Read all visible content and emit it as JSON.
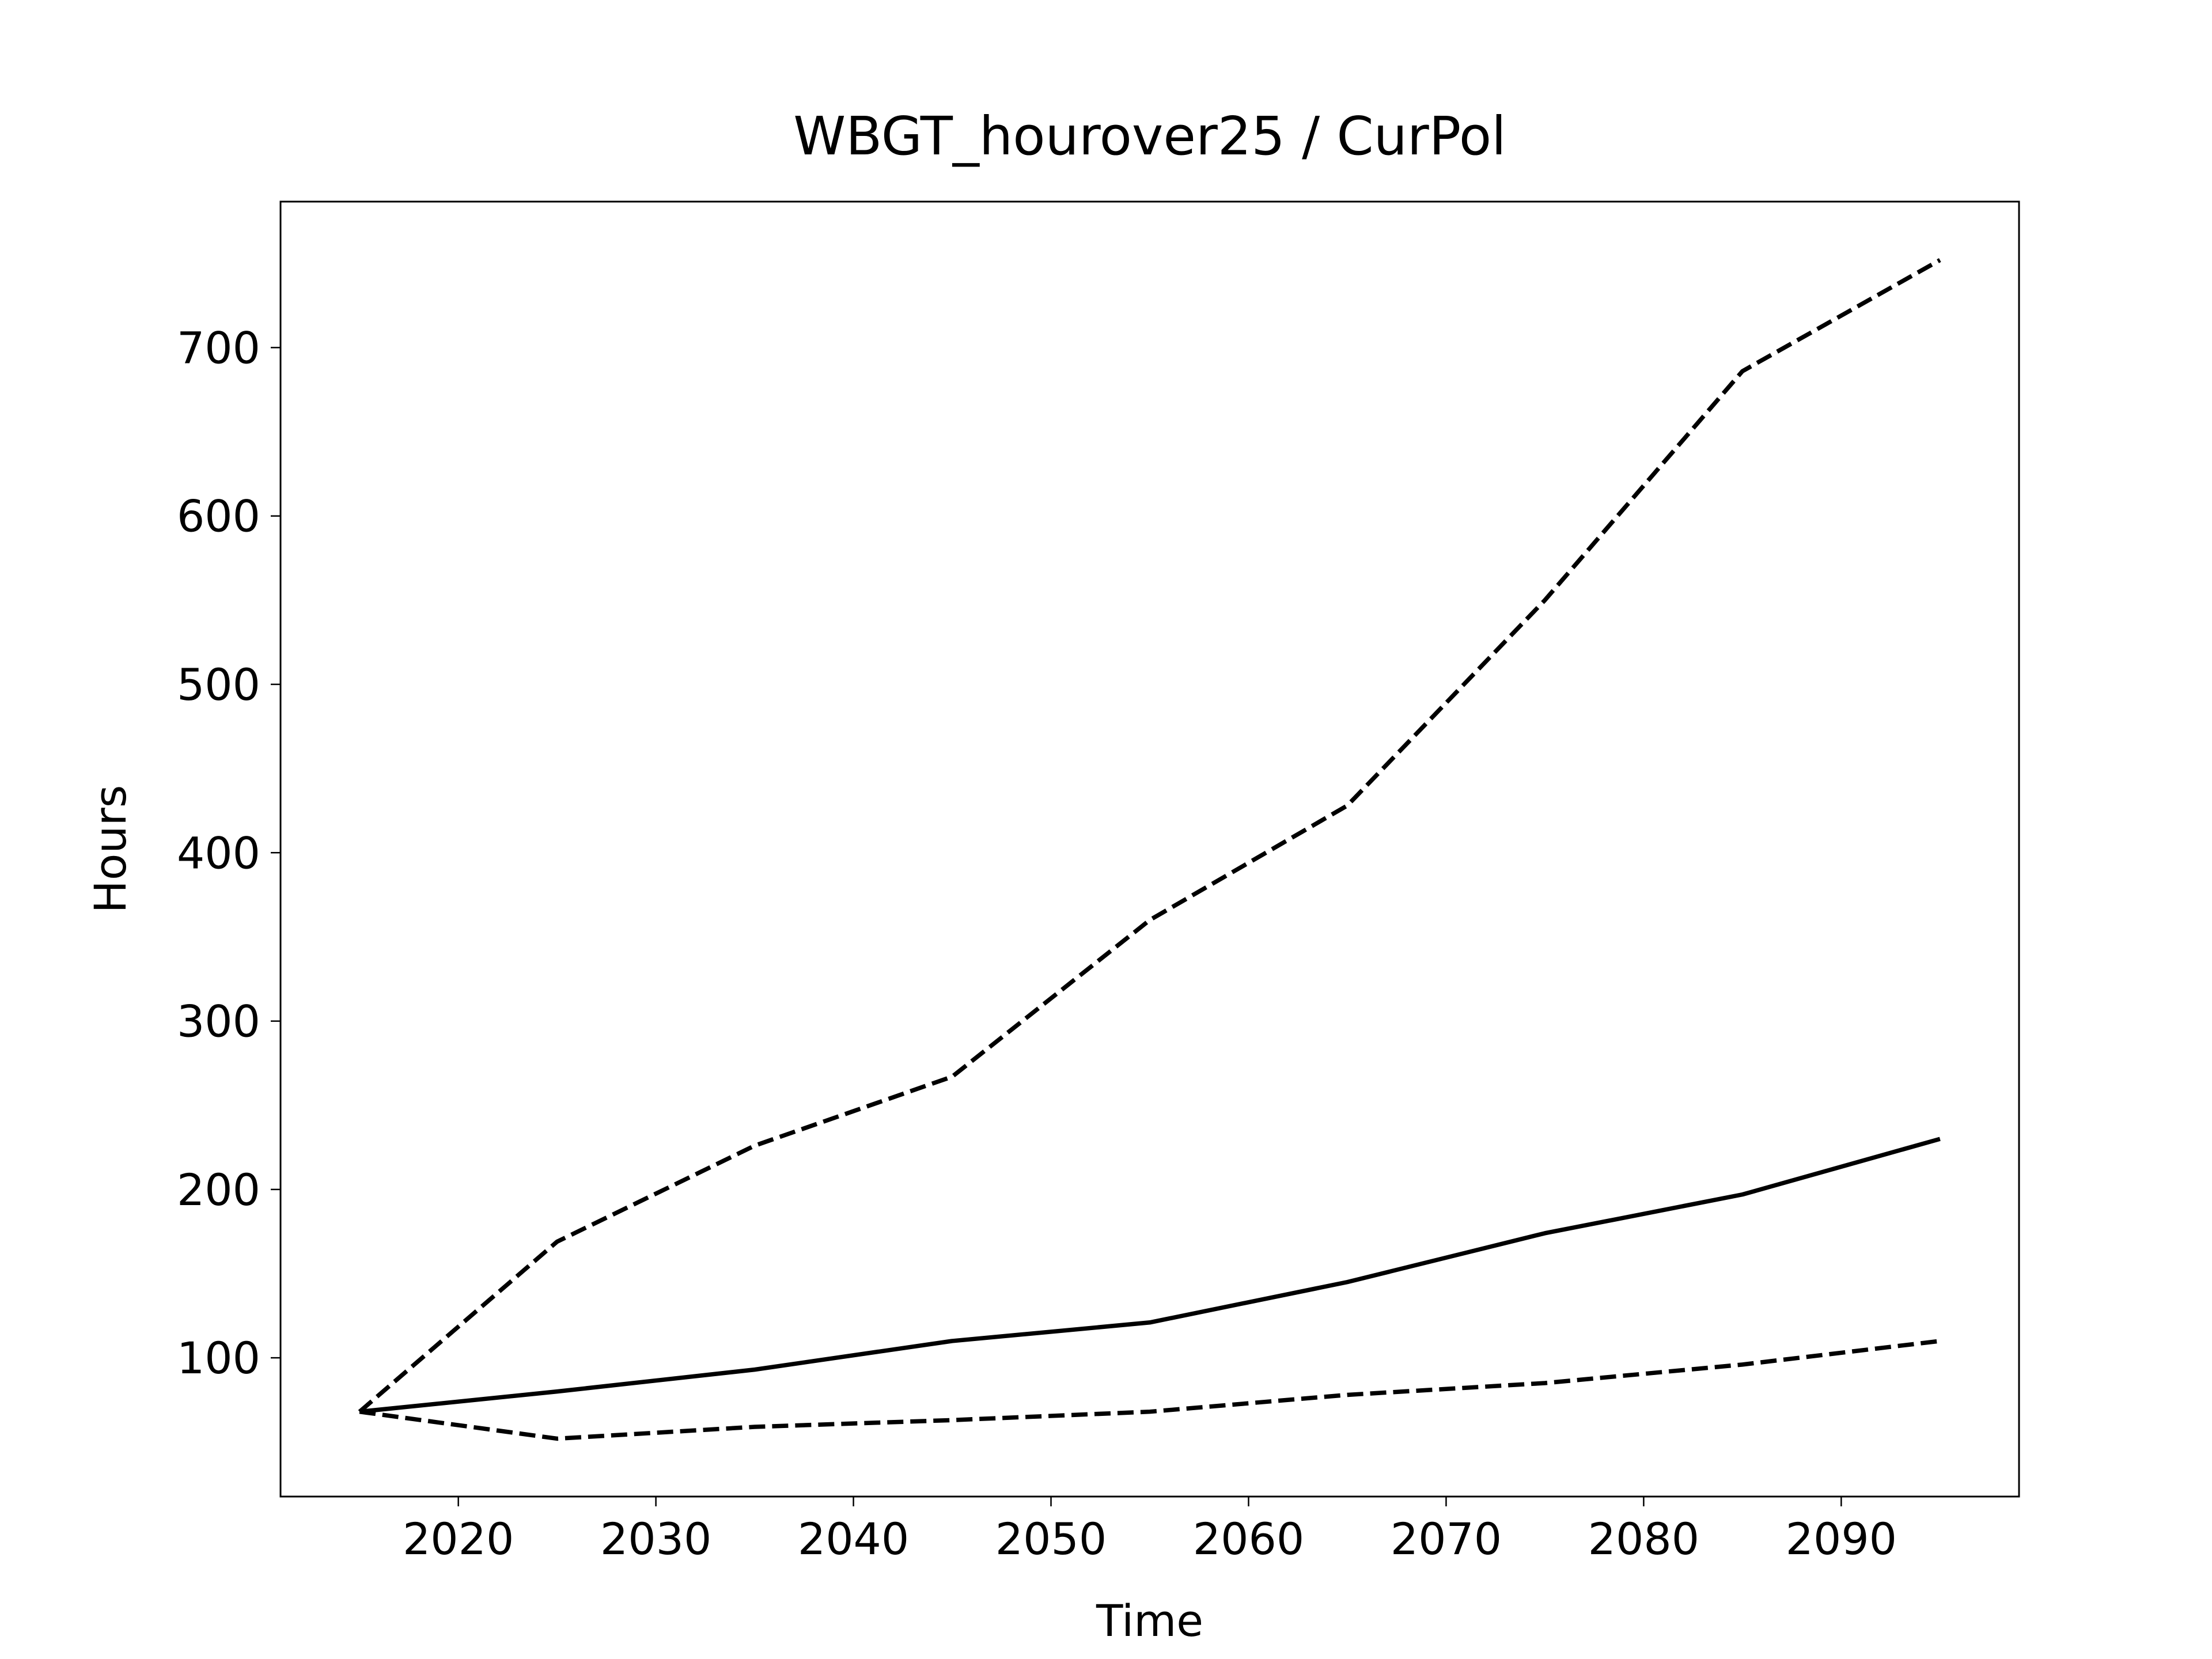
{
  "chart_data": {
    "type": "line",
    "title": "WBGT_hourover25 / CurPol",
    "x_label": "Time",
    "y_label": "Hours",
    "x": [
      2015,
      2025,
      2035,
      2045,
      2055,
      2065,
      2075,
      2085,
      2095
    ],
    "series": [
      {
        "color": "#000000",
        "dashed": false,
        "values": [
          68,
          80,
          93,
          110,
          121,
          145,
          174,
          197,
          230
        ]
      },
      {
        "color": "#000000",
        "dashed": true,
        "values": [
          68,
          169,
          226,
          267,
          360,
          428,
          550,
          686,
          752
        ]
      },
      {
        "color": "#000000",
        "dashed": true,
        "values": [
          68,
          52,
          59,
          63,
          68,
          78,
          85,
          96,
          110
        ]
      }
    ],
    "xlim": [
      2011,
      2099
    ],
    "ylim": [
      17.6,
      786.7
    ],
    "xticks": [
      2020,
      2030,
      2040,
      2050,
      2060,
      2070,
      2080,
      2090
    ],
    "yticks": [
      100,
      200,
      300,
      400,
      500,
      600,
      700
    ],
    "grid": false
  }
}
